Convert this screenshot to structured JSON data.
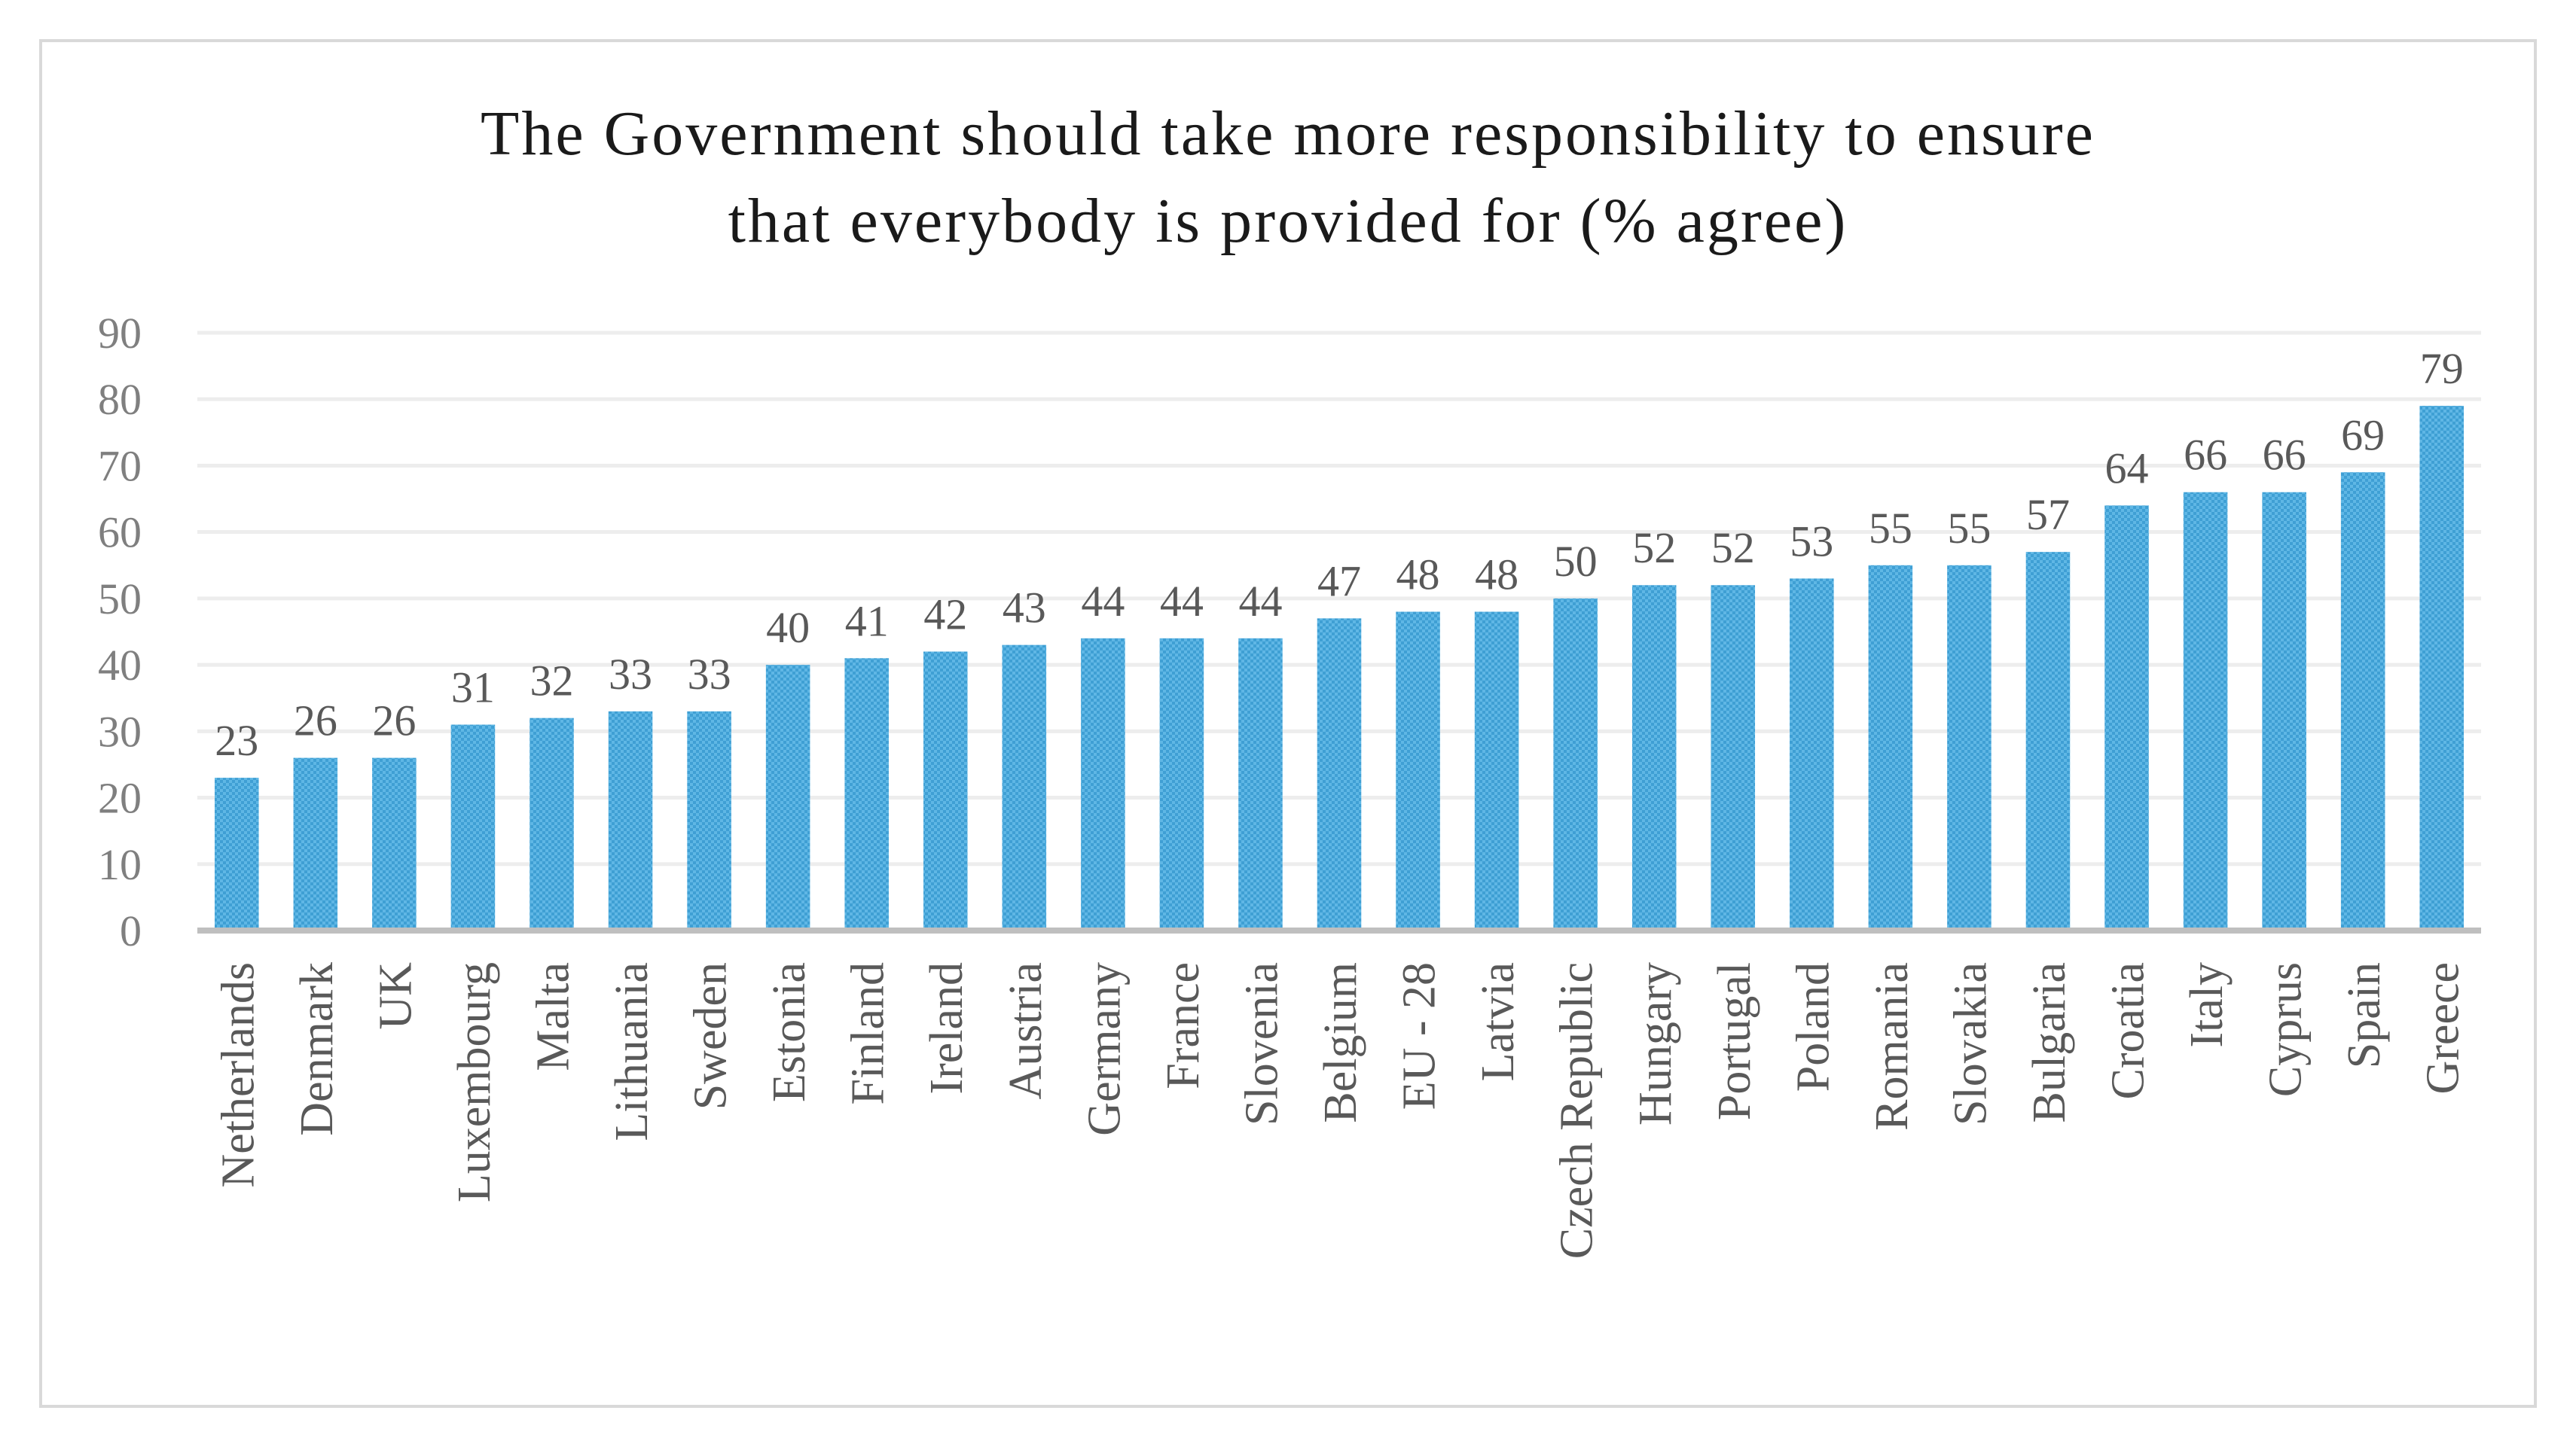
{
  "chart_data": {
    "type": "bar",
    "title": "The Government should take more responsibility to ensure\nthat everybody is provided for (% agree)",
    "xlabel": "",
    "ylabel": "",
    "ylim": [
      0,
      90
    ],
    "yticks": [
      0,
      10,
      20,
      30,
      40,
      50,
      60,
      70,
      80,
      90
    ],
    "grid": true,
    "categories": [
      "Netherlands",
      "Denmark",
      "UK",
      "Luxembourg",
      "Malta",
      "Lithuania",
      "Sweden",
      "Estonia",
      "Finland",
      "Ireland",
      "Austria",
      "Germany",
      "France",
      "Slovenia",
      "Belgium",
      "EU - 28",
      "Latvia",
      "Czech Republic",
      "Hungary",
      "Portugal",
      "Poland",
      "Romania",
      "Slovakia",
      "Bulgaria",
      "Croatia",
      "Italy",
      "Cyprus",
      "Spain",
      "Greece"
    ],
    "values": [
      23,
      26,
      26,
      31,
      32,
      33,
      33,
      40,
      41,
      42,
      43,
      44,
      44,
      44,
      47,
      48,
      48,
      50,
      52,
      52,
      53,
      55,
      55,
      57,
      64,
      66,
      66,
      69,
      79
    ],
    "colors": {
      "bar": "#5fb7e5",
      "bar_pattern": "#3f9fd4",
      "grid": "#ededed",
      "axis": "#bfbfbf"
    }
  }
}
